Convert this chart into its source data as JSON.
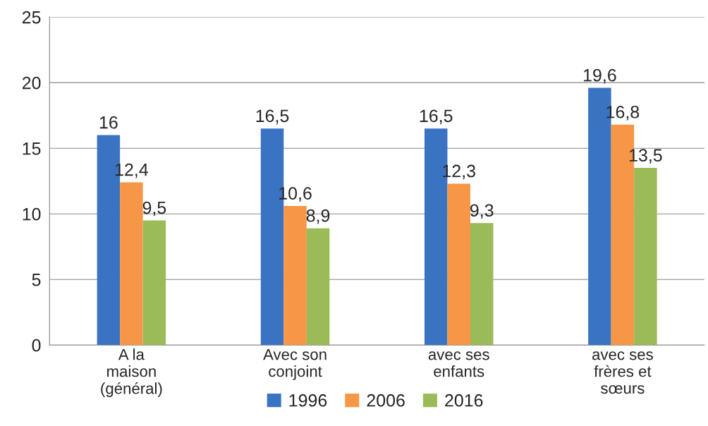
{
  "chart_data": {
    "type": "bar",
    "categories": [
      "A la\nmaison\n(général)",
      "Avec son\nconjoint",
      "avec ses\nenfants",
      "avec ses\nfrères et\nsœurs"
    ],
    "series": [
      {
        "name": "1996",
        "color": "#3a73c2",
        "values": [
          16,
          16.5,
          16.5,
          19.6
        ],
        "value_labels": [
          "16",
          "16,5",
          "16,5",
          "19,6"
        ]
      },
      {
        "name": "2006",
        "color": "#f79646",
        "values": [
          12.4,
          10.6,
          12.3,
          16.8
        ],
        "value_labels": [
          "12,4",
          "10,6",
          "12,3",
          "16,8"
        ]
      },
      {
        "name": "2016",
        "color": "#9bbb59",
        "values": [
          9.5,
          8.9,
          9.3,
          13.5
        ],
        "value_labels": [
          "9,5",
          "8,9",
          "9,3",
          "13,5"
        ]
      }
    ],
    "ylim": [
      0,
      25
    ],
    "yticks": [
      0,
      5,
      10,
      15,
      20,
      25
    ],
    "grid": "y",
    "legend": "bottom"
  }
}
